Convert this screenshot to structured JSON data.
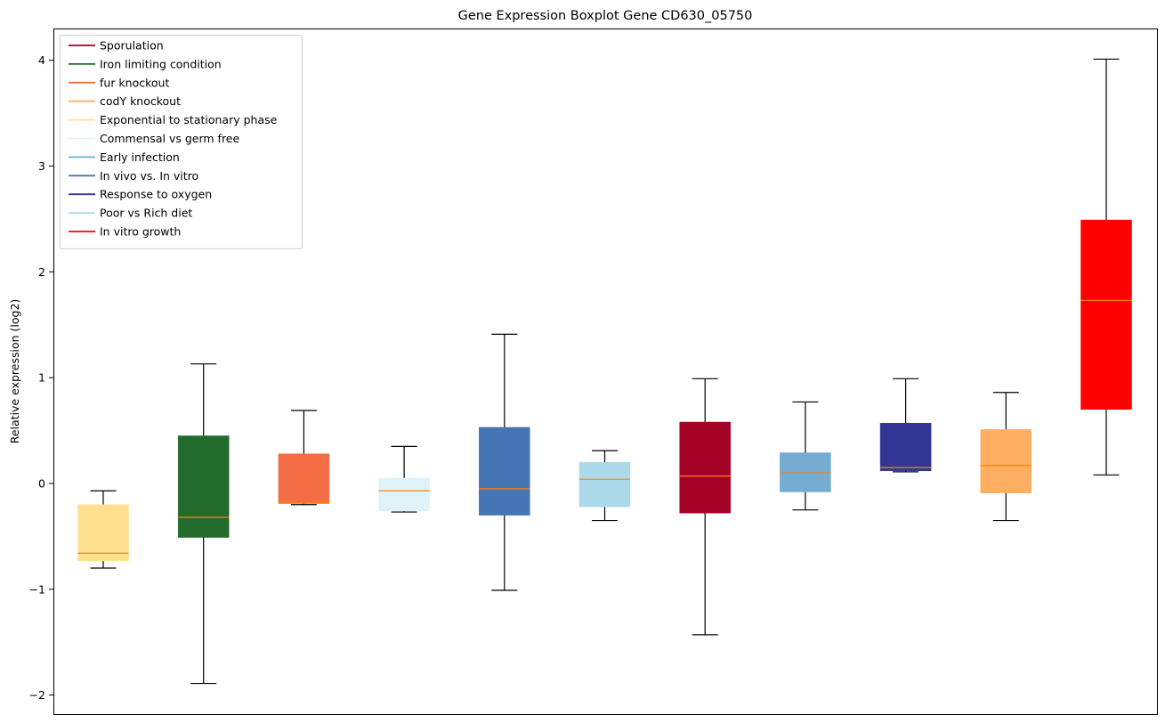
{
  "chart_data": {
    "type": "boxplot",
    "title": "Gene Expression Boxplot Gene CD630_05750",
    "xlabel": "",
    "ylabel": "Relative expression (log2)",
    "ylim": [
      -2.18,
      4.3
    ],
    "yticks": [
      -2,
      -1,
      0,
      1,
      2,
      3,
      4
    ],
    "ytick_labels": [
      "−2",
      "−1",
      "0",
      "1",
      "2",
      "3",
      "4"
    ],
    "grid": false,
    "legend_position": "top-left",
    "median_color": "#ff7f0e",
    "whisker_color": "#000000",
    "legend": [
      {
        "label": "Sporulation",
        "color": "#a50026"
      },
      {
        "label": "Iron limiting condition",
        "color": "#236b2d"
      },
      {
        "label": "fur knockout",
        "color": "#f46d43"
      },
      {
        "label": "codY knockout",
        "color": "#fdae61"
      },
      {
        "label": "Exponential to stationary phase",
        "color": "#fee090"
      },
      {
        "label": "Commensal vs germ free",
        "color": "#e0f3f8"
      },
      {
        "label": "Early infection",
        "color": "#74add1"
      },
      {
        "label": "In vivo vs. In vitro",
        "color": "#4575b4"
      },
      {
        "label": "Response to oxygen",
        "color": "#313695"
      },
      {
        "label": "Poor vs Rich diet",
        "color": "#abd9e9"
      },
      {
        "label": "In vitro growth",
        "color": "#ff0000"
      }
    ],
    "boxes": [
      {
        "group": "Exponential to stationary phase",
        "color": "#fee090",
        "whisker_low": -0.8,
        "q1": -0.73,
        "median": -0.66,
        "q3": -0.2,
        "whisker_high": -0.07
      },
      {
        "group": "Iron limiting condition",
        "color": "#236b2d",
        "whisker_low": -1.89,
        "q1": -0.51,
        "median": -0.32,
        "q3": 0.45,
        "whisker_high": 1.13
      },
      {
        "group": "fur knockout",
        "color": "#f46d43",
        "whisker_low": -0.2,
        "q1": -0.19,
        "median": -0.18,
        "q3": 0.28,
        "whisker_high": 0.69
      },
      {
        "group": "Commensal vs germ free",
        "color": "#e0f3f8",
        "whisker_low": -0.27,
        "q1": -0.26,
        "median": -0.07,
        "q3": 0.05,
        "whisker_high": 0.35
      },
      {
        "group": "In vivo vs. In vitro",
        "color": "#4575b4",
        "whisker_low": -1.01,
        "q1": -0.3,
        "median": -0.05,
        "q3": 0.53,
        "whisker_high": 1.41
      },
      {
        "group": "Poor vs Rich diet",
        "color": "#abd9e9",
        "whisker_low": -0.35,
        "q1": -0.22,
        "median": 0.04,
        "q3": 0.2,
        "whisker_high": 0.31
      },
      {
        "group": "Sporulation",
        "color": "#a50026",
        "whisker_low": -1.43,
        "q1": -0.28,
        "median": 0.07,
        "q3": 0.58,
        "whisker_high": 0.99
      },
      {
        "group": "Early infection",
        "color": "#74add1",
        "whisker_low": -0.25,
        "q1": -0.08,
        "median": 0.1,
        "q3": 0.29,
        "whisker_high": 0.77
      },
      {
        "group": "Response to oxygen",
        "color": "#313695",
        "whisker_low": 0.11,
        "q1": 0.12,
        "median": 0.15,
        "q3": 0.57,
        "whisker_high": 0.99
      },
      {
        "group": "codY knockout",
        "color": "#fdae61",
        "whisker_low": -0.35,
        "q1": -0.09,
        "median": 0.17,
        "q3": 0.51,
        "whisker_high": 0.86
      },
      {
        "group": "In vitro growth",
        "color": "#ff0000",
        "whisker_low": 0.08,
        "q1": 0.7,
        "median": 1.73,
        "q3": 2.49,
        "whisker_high": 4.01
      }
    ]
  }
}
